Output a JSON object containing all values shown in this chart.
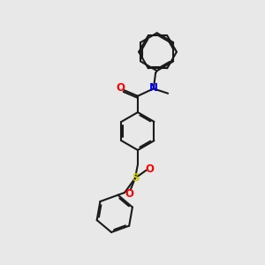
{
  "bg_color": "#e8e8e8",
  "bond_color": "#1a1a1a",
  "N_color": "#0000ff",
  "O_color": "#ff0000",
  "S_color": "#cccc00",
  "lw": 1.5,
  "dpi": 100,
  "figsize": [
    3.0,
    3.0
  ],
  "r": 0.72,
  "xlim": [
    0,
    10
  ],
  "ylim": [
    0,
    10
  ]
}
